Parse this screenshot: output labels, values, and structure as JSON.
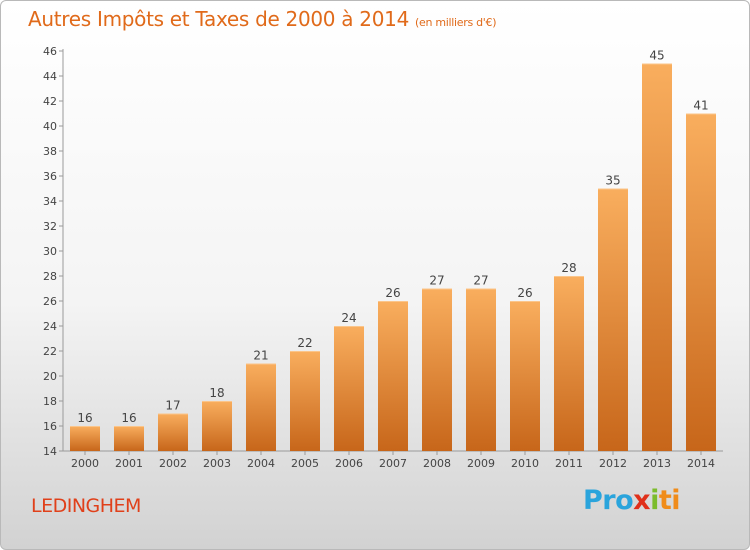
{
  "header": {
    "title": "Autres Impôts et Taxes de 2000 à 2014",
    "subtitle": "(en milliers d'€)"
  },
  "footer": {
    "place": "LEDINGHEM",
    "logo": [
      "Pro",
      "x",
      "i",
      "ti"
    ]
  },
  "colors": {
    "title": "#e06a1a",
    "bar_light": "#f7a554",
    "bar_dark": "#c8681a",
    "place": "#e0401a"
  },
  "chart_data": {
    "type": "bar",
    "title": "Autres Impôts et Taxes de 2000 à 2014",
    "categories": [
      "2000",
      "2001",
      "2002",
      "2003",
      "2004",
      "2005",
      "2006",
      "2007",
      "2008",
      "2009",
      "2010",
      "2011",
      "2012",
      "2013",
      "2014"
    ],
    "values": [
      16,
      16,
      17,
      18,
      21,
      22,
      24,
      26,
      27,
      27,
      26,
      28,
      35,
      45,
      41
    ],
    "ylim": [
      14,
      46
    ],
    "yticks": [
      14,
      16,
      18,
      20,
      22,
      24,
      26,
      28,
      30,
      32,
      34,
      36,
      38,
      40,
      42,
      44,
      46
    ],
    "grid": false,
    "legend": "none"
  }
}
